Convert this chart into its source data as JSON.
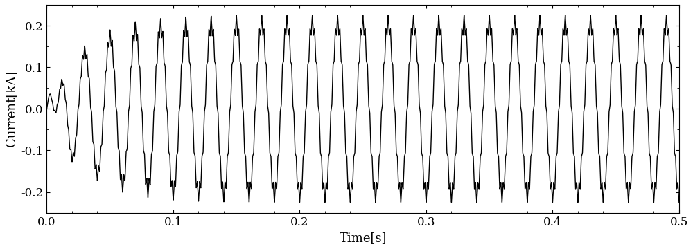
{
  "xlabel": "Time[s]",
  "ylabel": "Current[kA]",
  "xlim": [
    0.0,
    0.5
  ],
  "ylim": [
    -0.25,
    0.25
  ],
  "yticks": [
    -0.2,
    -0.1,
    0.0,
    0.1,
    0.2
  ],
  "xticks": [
    0.0,
    0.1,
    0.2,
    0.3,
    0.4,
    0.5
  ],
  "bg_color": "#ffffff",
  "line_color": "#000000",
  "line_width": 1.0,
  "steady_amplitude": 0.205,
  "steady_freq": 50,
  "transient_duration": 0.045,
  "ripple_freq": 550,
  "ripple_amplitude": 0.025,
  "sample_rate": 100000,
  "tick_fontsize": 12,
  "label_fontsize": 13
}
